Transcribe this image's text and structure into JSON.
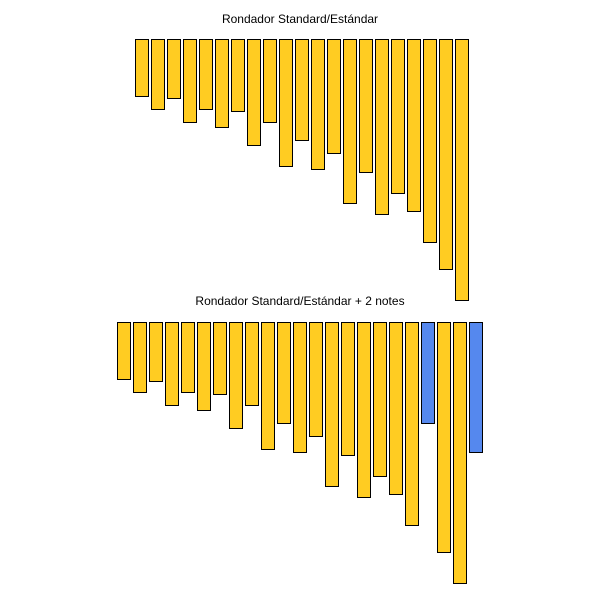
{
  "diagram": {
    "colors": {
      "standard": "#FFCC22",
      "extra": "#5588EE",
      "outline": "#000000"
    },
    "instruments": [
      {
        "title": "Rondador Standard/Estándar",
        "pipes": [
          {
            "length": 0.22,
            "color_key": "standard"
          },
          {
            "length": 0.27,
            "color_key": "standard"
          },
          {
            "length": 0.23,
            "color_key": "standard"
          },
          {
            "length": 0.32,
            "color_key": "standard"
          },
          {
            "length": 0.27,
            "color_key": "standard"
          },
          {
            "length": 0.34,
            "color_key": "standard"
          },
          {
            "length": 0.28,
            "color_key": "standard"
          },
          {
            "length": 0.41,
            "color_key": "standard"
          },
          {
            "length": 0.32,
            "color_key": "standard"
          },
          {
            "length": 0.49,
            "color_key": "standard"
          },
          {
            "length": 0.39,
            "color_key": "standard"
          },
          {
            "length": 0.5,
            "color_key": "standard"
          },
          {
            "length": 0.44,
            "color_key": "standard"
          },
          {
            "length": 0.63,
            "color_key": "standard"
          },
          {
            "length": 0.51,
            "color_key": "standard"
          },
          {
            "length": 0.67,
            "color_key": "standard"
          },
          {
            "length": 0.59,
            "color_key": "standard"
          },
          {
            "length": 0.66,
            "color_key": "standard"
          },
          {
            "length": 0.78,
            "color_key": "standard"
          },
          {
            "length": 0.88,
            "color_key": "standard"
          },
          {
            "length": 1.0,
            "color_key": "standard"
          }
        ]
      },
      {
        "title": "Rondador Standard/Estándar + 2 notes",
        "pipes": [
          {
            "length": 0.22,
            "color_key": "standard"
          },
          {
            "length": 0.27,
            "color_key": "standard"
          },
          {
            "length": 0.23,
            "color_key": "standard"
          },
          {
            "length": 0.32,
            "color_key": "standard"
          },
          {
            "length": 0.27,
            "color_key": "standard"
          },
          {
            "length": 0.34,
            "color_key": "standard"
          },
          {
            "length": 0.28,
            "color_key": "standard"
          },
          {
            "length": 0.41,
            "color_key": "standard"
          },
          {
            "length": 0.32,
            "color_key": "standard"
          },
          {
            "length": 0.49,
            "color_key": "standard"
          },
          {
            "length": 0.39,
            "color_key": "standard"
          },
          {
            "length": 0.5,
            "color_key": "standard"
          },
          {
            "length": 0.44,
            "color_key": "standard"
          },
          {
            "length": 0.63,
            "color_key": "standard"
          },
          {
            "length": 0.51,
            "color_key": "standard"
          },
          {
            "length": 0.67,
            "color_key": "standard"
          },
          {
            "length": 0.59,
            "color_key": "standard"
          },
          {
            "length": 0.66,
            "color_key": "standard"
          },
          {
            "length": 0.78,
            "color_key": "standard"
          },
          {
            "length": 0.39,
            "color_key": "extra"
          },
          {
            "length": 0.88,
            "color_key": "standard"
          },
          {
            "length": 1.0,
            "color_key": "standard"
          },
          {
            "length": 0.5,
            "color_key": "extra"
          }
        ]
      }
    ]
  }
}
